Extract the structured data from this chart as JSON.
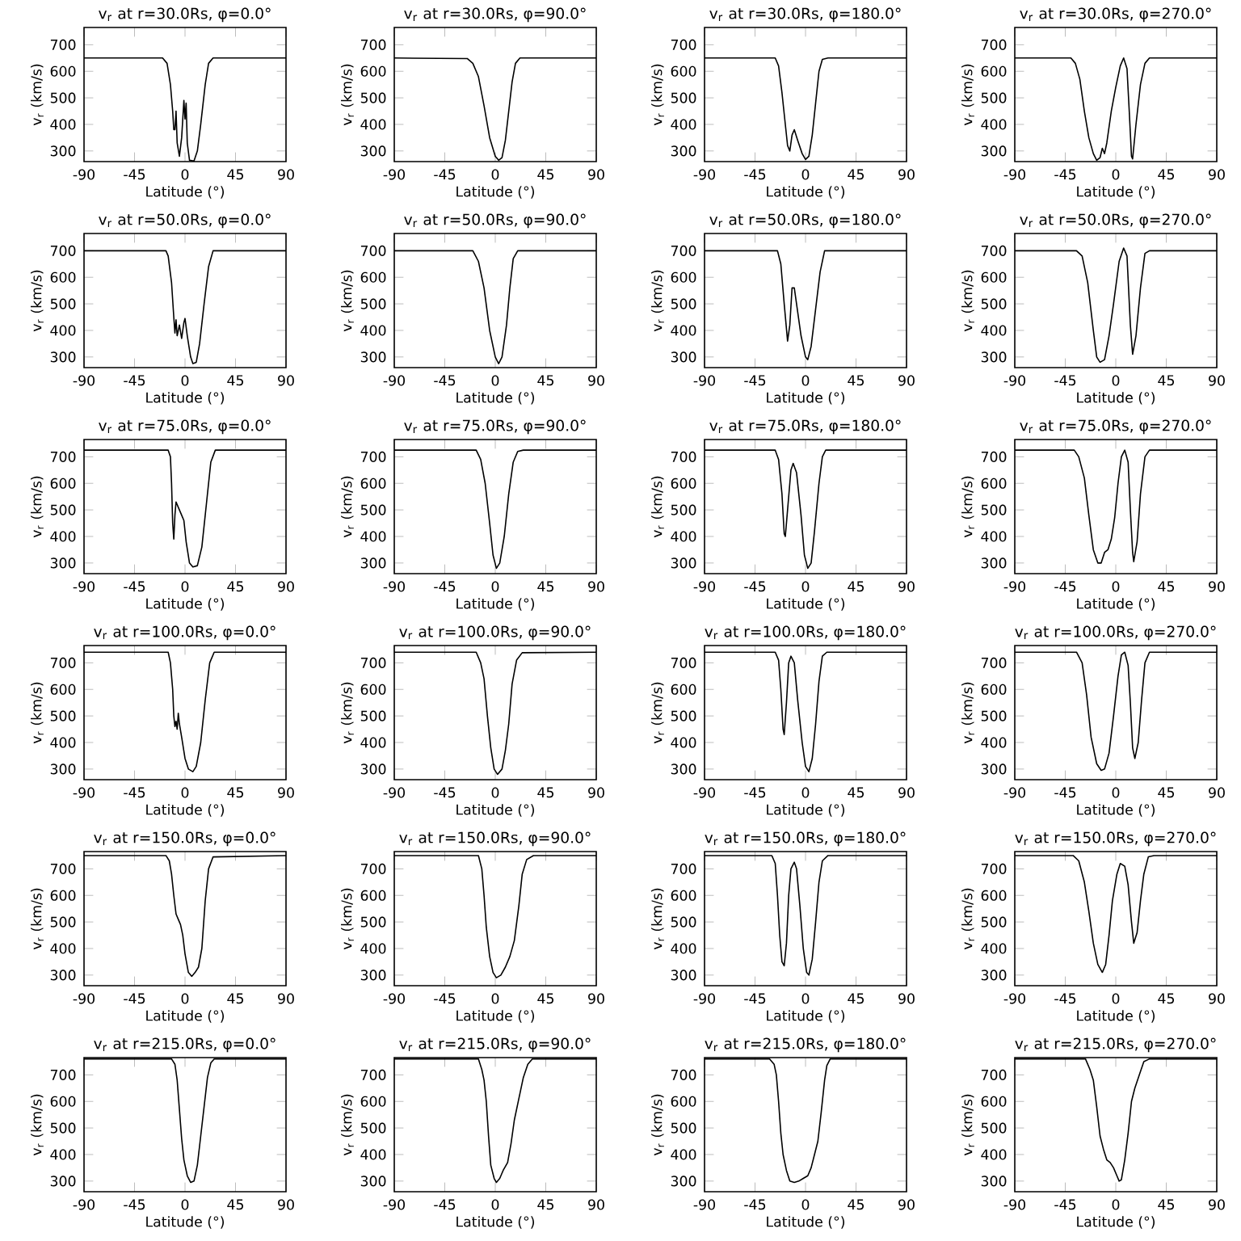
{
  "chart_data": [
    {
      "type": "line",
      "title": "v$_{r}$ at r=30.0Rs, φ=0.0°",
      "xlabel": "Latitude (°)",
      "ylabel": "v$_{r}$ (km/s)",
      "xlim": [
        -90,
        90
      ],
      "ylim": [
        260,
        765
      ],
      "xticks": [
        -90,
        -45,
        0,
        45,
        90
      ],
      "yticks": [
        300,
        400,
        500,
        600,
        700
      ],
      "color": "#000000",
      "x": [
        -90,
        -20,
        -16,
        -13,
        -11,
        -10,
        -9,
        -8,
        -7,
        -5,
        -3,
        -1,
        0,
        1,
        2,
        4,
        8,
        11,
        14,
        18,
        21,
        25,
        90
      ],
      "values": [
        650,
        650,
        630,
        550,
        450,
        380,
        380,
        450,
        330,
        280,
        350,
        490,
        420,
        480,
        330,
        265,
        262,
        300,
        400,
        550,
        630,
        650,
        650
      ]
    },
    {
      "type": "line",
      "title": "v$_{r}$ at r=30.0Rs, φ=90.0°",
      "xlabel": "Latitude (°)",
      "ylabel": "v$_{r}$ (km/s)",
      "xlim": [
        -90,
        90
      ],
      "ylim": [
        260,
        765
      ],
      "xticks": [
        -90,
        -45,
        0,
        45,
        90
      ],
      "yticks": [
        300,
        400,
        500,
        600,
        700
      ],
      "color": "#000000",
      "x": [
        -90,
        -25,
        -20,
        -15,
        -10,
        -5,
        0,
        3,
        6,
        9,
        12,
        15,
        18,
        22,
        90
      ],
      "values": [
        650,
        648,
        630,
        580,
        470,
        350,
        280,
        265,
        275,
        340,
        450,
        560,
        630,
        650,
        650
      ]
    },
    {
      "type": "line",
      "title": "v$_{r}$ at r=30.0Rs, φ=180.0°",
      "xlabel": "Latitude (°)",
      "ylabel": "v$_{r}$ (km/s)",
      "xlim": [
        -90,
        90
      ],
      "ylim": [
        260,
        765
      ],
      "xticks": [
        -90,
        -45,
        0,
        45,
        90
      ],
      "yticks": [
        300,
        400,
        500,
        600,
        700
      ],
      "color": "#000000",
      "x": [
        -90,
        -27,
        -24,
        -21,
        -18,
        -16,
        -14,
        -12,
        -10,
        -7,
        -3,
        0,
        3,
        6,
        9,
        12,
        15,
        20,
        90
      ],
      "values": [
        650,
        650,
        620,
        520,
        400,
        320,
        300,
        360,
        380,
        340,
        290,
        268,
        280,
        360,
        480,
        600,
        645,
        650,
        650
      ]
    },
    {
      "type": "line",
      "title": "v$_{r}$ at r=30.0Rs, φ=270.0°",
      "xlabel": "Latitude (°)",
      "ylabel": "v$_{r}$ (km/s)",
      "xlim": [
        -90,
        90
      ],
      "ylim": [
        260,
        765
      ],
      "xticks": [
        -90,
        -45,
        0,
        45,
        90
      ],
      "yticks": [
        300,
        400,
        500,
        600,
        700
      ],
      "color": "#000000",
      "x": [
        -90,
        -40,
        -36,
        -32,
        -28,
        -24,
        -20,
        -17,
        -14,
        -12,
        -10,
        -8,
        -4,
        0,
        4,
        7,
        10,
        12,
        14,
        15,
        18,
        22,
        26,
        30,
        90
      ],
      "values": [
        650,
        650,
        630,
        570,
        450,
        350,
        290,
        265,
        275,
        310,
        290,
        330,
        450,
        540,
        620,
        650,
        610,
        450,
        280,
        270,
        400,
        550,
        630,
        650,
        650
      ]
    },
    {
      "type": "line",
      "title": "v$_{r}$ at r=50.0Rs, φ=0.0°",
      "xlabel": "Latitude (°)",
      "ylabel": "v$_{r}$ (km/s)",
      "xlim": [
        -90,
        90
      ],
      "ylim": [
        260,
        765
      ],
      "xticks": [
        -90,
        -45,
        0,
        45,
        90
      ],
      "yticks": [
        300,
        400,
        500,
        600,
        700
      ],
      "color": "#000000",
      "x": [
        -90,
        -17,
        -15,
        -12,
        -10,
        -9,
        -8,
        -7,
        -5,
        -3,
        -1,
        0,
        2,
        5,
        7,
        10,
        13,
        17,
        21,
        25,
        90
      ],
      "values": [
        700,
        700,
        680,
        580,
        450,
        390,
        440,
        380,
        420,
        370,
        430,
        445,
        380,
        300,
        275,
        280,
        350,
        500,
        640,
        700,
        700
      ]
    },
    {
      "type": "line",
      "title": "v$_{r}$ at r=50.0Rs, φ=90.0°",
      "xlabel": "Latitude (°)",
      "ylabel": "v$_{r}$ (km/s)",
      "xlim": [
        -90,
        90
      ],
      "ylim": [
        260,
        765
      ],
      "xticks": [
        -90,
        -45,
        0,
        45,
        90
      ],
      "yticks": [
        300,
        400,
        500,
        600,
        700
      ],
      "color": "#000000",
      "x": [
        -90,
        -20,
        -15,
        -10,
        -5,
        0,
        3,
        6,
        10,
        13,
        16,
        20,
        90
      ],
      "values": [
        700,
        700,
        660,
        560,
        400,
        300,
        275,
        300,
        420,
        560,
        670,
        700,
        700
      ]
    },
    {
      "type": "line",
      "title": "v$_{r}$ at r=50.0Rs, φ=180.0°",
      "xlabel": "Latitude (°)",
      "ylabel": "v$_{r}$ (km/s)",
      "xlim": [
        -90,
        90
      ],
      "ylim": [
        260,
        765
      ],
      "xticks": [
        -90,
        -45,
        0,
        45,
        90
      ],
      "yticks": [
        300,
        400,
        500,
        600,
        700
      ],
      "color": "#000000",
      "x": [
        -90,
        -25,
        -22,
        -19,
        -16,
        -14,
        -12,
        -10,
        -8,
        -4,
        0,
        2,
        5,
        9,
        13,
        17,
        90
      ],
      "values": [
        700,
        700,
        650,
        500,
        360,
        420,
        560,
        560,
        500,
        380,
        300,
        290,
        340,
        480,
        620,
        700,
        700
      ]
    },
    {
      "type": "line",
      "title": "v$_{r}$ at r=50.0Rs, φ=270.0°",
      "xlabel": "Latitude (°)",
      "ylabel": "v$_{r}$ (km/s)",
      "xlim": [
        -90,
        90
      ],
      "ylim": [
        260,
        765
      ],
      "xticks": [
        -90,
        -45,
        0,
        45,
        90
      ],
      "yticks": [
        300,
        400,
        500,
        600,
        700
      ],
      "color": "#000000",
      "x": [
        -90,
        -35,
        -30,
        -25,
        -20,
        -17,
        -14,
        -10,
        -6,
        -2,
        3,
        7,
        10,
        13,
        15,
        18,
        22,
        26,
        30,
        90
      ],
      "values": [
        700,
        700,
        680,
        580,
        400,
        300,
        280,
        290,
        380,
        500,
        660,
        710,
        680,
        420,
        310,
        380,
        560,
        690,
        700,
        700
      ]
    },
    {
      "type": "line",
      "title": "v$_{r}$ at r=75.0Rs, φ=0.0°",
      "xlabel": "Latitude (°)",
      "ylabel": "v$_{r}$ (km/s)",
      "xlim": [
        -90,
        90
      ],
      "ylim": [
        260,
        765
      ],
      "xticks": [
        -90,
        -45,
        0,
        45,
        90
      ],
      "yticks": [
        300,
        400,
        500,
        600,
        700
      ],
      "color": "#000000",
      "x": [
        -90,
        -15,
        -13,
        -12,
        -11,
        -10,
        -9,
        -8,
        -6,
        -3,
        -1,
        1,
        4,
        7,
        11,
        15,
        19,
        23,
        27,
        90
      ],
      "values": [
        725,
        725,
        700,
        600,
        450,
        390,
        480,
        530,
        510,
        480,
        460,
        380,
        300,
        285,
        290,
        360,
        520,
        680,
        725,
        725
      ]
    },
    {
      "type": "line",
      "title": "v$_{r}$ at r=75.0Rs, φ=90.0°",
      "xlabel": "Latitude (°)",
      "ylabel": "v$_{r}$ (km/s)",
      "xlim": [
        -90,
        90
      ],
      "ylim": [
        260,
        765
      ],
      "xticks": [
        -90,
        -45,
        0,
        45,
        90
      ],
      "yticks": [
        300,
        400,
        500,
        600,
        700
      ],
      "color": "#000000",
      "x": [
        -90,
        -17,
        -13,
        -9,
        -5,
        -2,
        1,
        4,
        8,
        12,
        16,
        20,
        25,
        90
      ],
      "values": [
        725,
        725,
        690,
        600,
        450,
        330,
        280,
        300,
        400,
        560,
        680,
        720,
        725,
        725
      ]
    },
    {
      "type": "line",
      "title": "v$_{r}$ at r=75.0Rs, φ=180.0°",
      "xlabel": "Latitude (°)",
      "ylabel": "v$_{r}$ (km/s)",
      "xlim": [
        -90,
        90
      ],
      "ylim": [
        260,
        765
      ],
      "xticks": [
        -90,
        -45,
        0,
        45,
        90
      ],
      "yticks": [
        300,
        400,
        500,
        600,
        700
      ],
      "color": "#000000",
      "x": [
        -90,
        -27,
        -24,
        -21,
        -19,
        -18,
        -16,
        -13,
        -11,
        -8,
        -4,
        -1,
        2,
        5,
        8,
        12,
        15,
        18,
        90
      ],
      "values": [
        725,
        725,
        690,
        560,
        410,
        400,
        500,
        650,
        675,
        640,
        480,
        330,
        280,
        300,
        420,
        600,
        700,
        725,
        725
      ]
    },
    {
      "type": "line",
      "title": "v$_{r}$ at r=75.0Rs, φ=270.0°",
      "xlabel": "Latitude (°)",
      "ylabel": "v$_{r}$ (km/s)",
      "xlim": [
        -90,
        90
      ],
      "ylim": [
        260,
        765
      ],
      "xticks": [
        -90,
        -45,
        0,
        45,
        90
      ],
      "yticks": [
        300,
        400,
        500,
        600,
        700
      ],
      "color": "#000000",
      "x": [
        -90,
        -37,
        -33,
        -28,
        -24,
        -20,
        -16,
        -13,
        -10,
        -7,
        -4,
        -1,
        2,
        5,
        8,
        11,
        13,
        15,
        16,
        19,
        22,
        26,
        30,
        90
      ],
      "values": [
        725,
        725,
        700,
        620,
        480,
        350,
        300,
        300,
        340,
        350,
        390,
        470,
        600,
        700,
        725,
        680,
        500,
        340,
        305,
        380,
        560,
        700,
        725,
        725
      ]
    },
    {
      "type": "line",
      "title": "v$_{r}$ at r=100.0Rs, φ=0.0°",
      "xlabel": "Latitude (°)",
      "ylabel": "v$_{r}$ (km/s)",
      "xlim": [
        -90,
        90
      ],
      "ylim": [
        260,
        765
      ],
      "xticks": [
        -90,
        -45,
        0,
        45,
        90
      ],
      "yticks": [
        300,
        400,
        500,
        600,
        700
      ],
      "color": "#000000",
      "x": [
        -90,
        -15,
        -13,
        -11,
        -10,
        -9,
        -8,
        -7,
        -6,
        -5,
        -3,
        0,
        3,
        7,
        10,
        14,
        18,
        22,
        26,
        90
      ],
      "values": [
        740,
        740,
        700,
        600,
        500,
        460,
        480,
        450,
        510,
        470,
        420,
        340,
        300,
        290,
        310,
        400,
        560,
        700,
        740,
        740
      ]
    },
    {
      "type": "line",
      "title": "v$_{r}$ at r=100.0Rs, φ=90.0°",
      "xlabel": "Latitude (°)",
      "ylabel": "v$_{r}$ (km/s)",
      "xlim": [
        -90,
        90
      ],
      "ylim": [
        260,
        765
      ],
      "xticks": [
        -90,
        -45,
        0,
        45,
        90
      ],
      "yticks": [
        300,
        400,
        500,
        600,
        700
      ],
      "color": "#000000",
      "x": [
        -90,
        -17,
        -13,
        -10,
        -7,
        -4,
        -1,
        2,
        6,
        9,
        12,
        15,
        19,
        24,
        90
      ],
      "values": [
        740,
        740,
        700,
        640,
        500,
        380,
        300,
        280,
        300,
        370,
        470,
        620,
        710,
        738,
        740
      ]
    },
    {
      "type": "line",
      "title": "v$_{r}$ at r=100.0Rs, φ=180.0°",
      "xlabel": "Latitude (°)",
      "ylabel": "v$_{r}$ (km/s)",
      "xlim": [
        -90,
        90
      ],
      "ylim": [
        260,
        765
      ],
      "xticks": [
        -90,
        -45,
        0,
        45,
        90
      ],
      "yticks": [
        300,
        400,
        500,
        600,
        700
      ],
      "color": "#000000",
      "x": [
        -90,
        -27,
        -24,
        -22,
        -20,
        -19,
        -17,
        -15,
        -13,
        -10,
        -7,
        -3,
        0,
        3,
        6,
        9,
        12,
        15,
        19,
        90
      ],
      "values": [
        740,
        740,
        710,
        600,
        450,
        430,
        550,
        700,
        725,
        700,
        560,
        400,
        310,
        290,
        340,
        470,
        630,
        725,
        740,
        740
      ]
    },
    {
      "type": "line",
      "title": "v$_{r}$ at r=100.0Rs, φ=270.0°",
      "xlabel": "Latitude (°)",
      "ylabel": "v$_{r}$ (km/s)",
      "xlim": [
        -90,
        90
      ],
      "ylim": [
        260,
        765
      ],
      "xticks": [
        -90,
        -45,
        0,
        45,
        90
      ],
      "yticks": [
        300,
        400,
        500,
        600,
        700
      ],
      "color": "#000000",
      "x": [
        -90,
        -35,
        -30,
        -26,
        -22,
        -17,
        -13,
        -10,
        -6,
        -2,
        2,
        5,
        8,
        11,
        13,
        15,
        17,
        20,
        23,
        26,
        30,
        90
      ],
      "values": [
        740,
        740,
        700,
        580,
        420,
        320,
        295,
        300,
        360,
        500,
        650,
        730,
        740,
        690,
        550,
        380,
        340,
        400,
        560,
        700,
        740,
        740
      ]
    },
    {
      "type": "line",
      "title": "v$_{r}$ at r=150.0Rs, φ=0.0°",
      "xlabel": "Latitude (°)",
      "ylabel": "v$_{r}$ (km/s)",
      "xlim": [
        -90,
        90
      ],
      "ylim": [
        260,
        765
      ],
      "xticks": [
        -90,
        -45,
        0,
        45,
        90
      ],
      "yticks": [
        300,
        400,
        500,
        600,
        700
      ],
      "color": "#000000",
      "x": [
        -90,
        -17,
        -14,
        -12,
        -10,
        -8,
        -6,
        -5,
        -4,
        -2,
        0,
        3,
        6,
        9,
        12,
        15,
        18,
        21,
        25,
        90
      ],
      "values": [
        750,
        750,
        730,
        680,
        600,
        530,
        510,
        500,
        490,
        450,
        380,
        310,
        295,
        310,
        330,
        400,
        580,
        700,
        745,
        750
      ]
    },
    {
      "type": "line",
      "title": "v$_{r}$ at r=150.0Rs, φ=90.0°",
      "xlabel": "Latitude (°)",
      "ylabel": "v$_{r}$ (km/s)",
      "xlim": [
        -90,
        90
      ],
      "ylim": [
        260,
        765
      ],
      "xticks": [
        -90,
        -45,
        0,
        45,
        90
      ],
      "yticks": [
        300,
        400,
        500,
        600,
        700
      ],
      "color": "#000000",
      "x": [
        -90,
        -15,
        -12,
        -10,
        -8,
        -5,
        -2,
        1,
        5,
        9,
        13,
        17,
        21,
        24,
        28,
        34,
        90
      ],
      "values": [
        750,
        750,
        700,
        600,
        480,
        370,
        310,
        290,
        300,
        330,
        370,
        430,
        560,
        680,
        735,
        750,
        750
      ]
    },
    {
      "type": "line",
      "title": "v$_{r}$ at r=150.0Rs, φ=180.0°",
      "xlabel": "Latitude (°)",
      "ylabel": "v$_{r}$ (km/s)",
      "xlim": [
        -90,
        90
      ],
      "ylim": [
        260,
        765
      ],
      "xticks": [
        -90,
        -45,
        0,
        45,
        90
      ],
      "yticks": [
        300,
        400,
        500,
        600,
        700
      ],
      "color": "#000000",
      "x": [
        -90,
        -30,
        -27,
        -25,
        -23,
        -21,
        -19,
        -17,
        -15,
        -13,
        -10,
        -8,
        -5,
        -2,
        1,
        3,
        6,
        9,
        12,
        15,
        20,
        90
      ],
      "values": [
        750,
        750,
        720,
        600,
        450,
        350,
        335,
        420,
        600,
        700,
        725,
        700,
        560,
        400,
        310,
        300,
        360,
        500,
        650,
        730,
        750,
        750
      ]
    },
    {
      "type": "line",
      "title": "v$_{r}$ at r=150.0Rs, φ=270.0°",
      "xlabel": "Latitude (°)",
      "ylabel": "v$_{r}$ (km/s)",
      "xlim": [
        -90,
        90
      ],
      "ylim": [
        260,
        765
      ],
      "xticks": [
        -90,
        -45,
        0,
        45,
        90
      ],
      "yticks": [
        300,
        400,
        500,
        600,
        700
      ],
      "color": "#000000",
      "x": [
        -90,
        -38,
        -33,
        -28,
        -24,
        -20,
        -16,
        -12,
        -9,
        -6,
        -3,
        1,
        4,
        8,
        11,
        14,
        16,
        19,
        22,
        25,
        29,
        34,
        90
      ],
      "values": [
        750,
        750,
        730,
        650,
        540,
        420,
        340,
        310,
        340,
        450,
        580,
        680,
        720,
        710,
        640,
        500,
        420,
        460,
        580,
        680,
        745,
        750,
        750
      ]
    },
    {
      "type": "line",
      "title": "v$_{r}$ at r=215.0Rs, φ=0.0°",
      "xlabel": "Latitude (°)",
      "ylabel": "v$_{r}$ (km/s)",
      "xlim": [
        -90,
        90
      ],
      "ylim": [
        260,
        765
      ],
      "xticks": [
        -90,
        -45,
        0,
        45,
        90
      ],
      "yticks": [
        300,
        400,
        500,
        600,
        700
      ],
      "color": "#000000",
      "x": [
        -90,
        -12,
        -9,
        -7,
        -5,
        -3,
        -1,
        2,
        5,
        8,
        11,
        14,
        17,
        20,
        23,
        26,
        90
      ],
      "values": [
        760,
        760,
        740,
        680,
        570,
        460,
        380,
        320,
        295,
        300,
        360,
        470,
        580,
        690,
        745,
        760,
        760
      ]
    },
    {
      "type": "line",
      "title": "v$_{r}$ at r=215.0Rs, φ=90.0°",
      "xlabel": "Latitude (°)",
      "ylabel": "v$_{r}$ (km/s)",
      "xlim": [
        -90,
        90
      ],
      "ylim": [
        260,
        765
      ],
      "xticks": [
        -90,
        -45,
        0,
        45,
        90
      ],
      "yticks": [
        300,
        400,
        500,
        600,
        700
      ],
      "color": "#000000",
      "x": [
        -90,
        -15,
        -12,
        -10,
        -8,
        -6,
        -4,
        -1,
        1,
        4,
        7,
        11,
        14,
        17,
        21,
        25,
        29,
        33,
        90
      ],
      "values": [
        760,
        760,
        720,
        680,
        600,
        470,
        360,
        310,
        295,
        310,
        340,
        370,
        440,
        530,
        610,
        690,
        740,
        760,
        760
      ]
    },
    {
      "type": "line",
      "title": "v$_{r}$ at r=215.0Rs, φ=180.0°",
      "xlabel": "Latitude (°)",
      "ylabel": "v$_{r}$ (km/s)",
      "xlim": [
        -90,
        90
      ],
      "ylim": [
        260,
        765
      ],
      "xticks": [
        -90,
        -45,
        0,
        45,
        90
      ],
      "yticks": [
        300,
        400,
        500,
        600,
        700
      ],
      "color": "#000000",
      "x": [
        -90,
        -32,
        -28,
        -26,
        -24,
        -22,
        -20,
        -17,
        -14,
        -10,
        -6,
        -2,
        2,
        5,
        8,
        11,
        14,
        17,
        19,
        22,
        90
      ],
      "values": [
        760,
        760,
        740,
        700,
        600,
        480,
        400,
        340,
        300,
        295,
        300,
        310,
        320,
        350,
        400,
        450,
        560,
        680,
        735,
        760,
        760
      ]
    },
    {
      "type": "line",
      "title": "v$_{r}$ at r=215.0Rs, φ=270.0°",
      "xlabel": "Latitude (°)",
      "ylabel": "v$_{r}$ (km/s)",
      "xlim": [
        -90,
        90
      ],
      "ylim": [
        260,
        765
      ],
      "xticks": [
        -90,
        -45,
        0,
        45,
        90
      ],
      "yticks": [
        300,
        400,
        500,
        600,
        700
      ],
      "color": "#000000",
      "x": [
        -90,
        -27,
        -23,
        -20,
        -17,
        -14,
        -11,
        -8,
        -5,
        -2,
        1,
        3,
        5,
        8,
        11,
        14,
        17,
        21,
        25,
        30,
        90
      ],
      "values": [
        760,
        760,
        720,
        680,
        580,
        470,
        420,
        380,
        370,
        350,
        320,
        300,
        305,
        380,
        480,
        600,
        650,
        700,
        750,
        760,
        760
      ]
    }
  ]
}
